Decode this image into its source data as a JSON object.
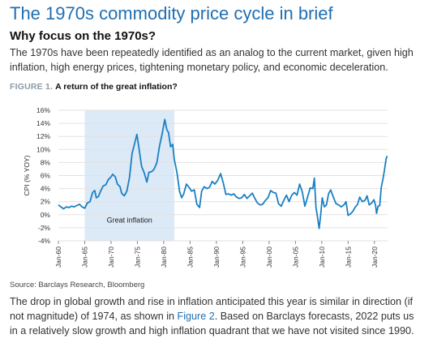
{
  "header": {
    "title": "The 1970s commodity price cycle in brief",
    "subhead": "Why focus on the 1970s?",
    "intro": "The 1970s have been repeatedly identified as an analog to the current market, given high inflation, high energy prices, tightening monetary policy, and economic deceleration."
  },
  "figure": {
    "label": "FIGURE 1.",
    "caption": "A return of the great inflation?"
  },
  "chart_data": {
    "type": "line",
    "ylabel": "CPI (% YOY)",
    "ylim": [
      -4,
      16
    ],
    "yticks": [
      "16%",
      "14%",
      "12%",
      "10%",
      "8%",
      "6%",
      "4%",
      "2%",
      "0%",
      "-2%",
      "-4%"
    ],
    "xlim": [
      1960,
      2022.5
    ],
    "xticks": [
      "Jan-60",
      "Jan-65",
      "Jan-70",
      "Jan-75",
      "Jan-80",
      "Jan-85",
      "Jan-90",
      "Jan-95",
      "Jan-00",
      "Jan-05",
      "Jan-10",
      "Jan-15",
      "Jan-20"
    ],
    "grid": "horizontal",
    "shaded_region": {
      "x": [
        1965,
        1982
      ],
      "label": "Great inflation"
    },
    "series": [
      {
        "color": "#1a80c4",
        "points": [
          [
            1960.0,
            1.5
          ],
          [
            1960.5,
            1.2
          ],
          [
            1961.0,
            0.9
          ],
          [
            1961.5,
            1.2
          ],
          [
            1962.0,
            1.1
          ],
          [
            1962.5,
            1.3
          ],
          [
            1963.0,
            1.2
          ],
          [
            1963.5,
            1.4
          ],
          [
            1964.0,
            1.6
          ],
          [
            1964.5,
            1.2
          ],
          [
            1965.0,
            1.0
          ],
          [
            1965.5,
            1.8
          ],
          [
            1966.0,
            2.0
          ],
          [
            1966.5,
            3.4
          ],
          [
            1966.9,
            3.7
          ],
          [
            1967.2,
            2.6
          ],
          [
            1967.6,
            2.8
          ],
          [
            1968.0,
            3.6
          ],
          [
            1968.5,
            4.4
          ],
          [
            1969.0,
            4.6
          ],
          [
            1969.5,
            5.4
          ],
          [
            1970.0,
            5.8
          ],
          [
            1970.3,
            6.2
          ],
          [
            1970.8,
            5.8
          ],
          [
            1971.2,
            4.7
          ],
          [
            1971.7,
            4.3
          ],
          [
            1972.0,
            3.3
          ],
          [
            1972.5,
            2.9
          ],
          [
            1973.0,
            3.6
          ],
          [
            1973.5,
            5.7
          ],
          [
            1974.0,
            9.4
          ],
          [
            1974.5,
            11.0
          ],
          [
            1974.9,
            12.3
          ],
          [
            1975.3,
            10.2
          ],
          [
            1975.8,
            7.4
          ],
          [
            1976.3,
            6.4
          ],
          [
            1976.8,
            5.0
          ],
          [
            1977.2,
            6.5
          ],
          [
            1977.7,
            6.6
          ],
          [
            1978.2,
            7.0
          ],
          [
            1978.7,
            8.0
          ],
          [
            1979.2,
            10.5
          ],
          [
            1979.7,
            12.4
          ],
          [
            1980.2,
            14.6
          ],
          [
            1980.6,
            13.0
          ],
          [
            1980.9,
            12.6
          ],
          [
            1981.3,
            10.4
          ],
          [
            1981.7,
            10.8
          ],
          [
            1982.0,
            8.5
          ],
          [
            1982.5,
            6.5
          ],
          [
            1983.0,
            3.6
          ],
          [
            1983.4,
            2.6
          ],
          [
            1983.8,
            3.2
          ],
          [
            1984.3,
            4.7
          ],
          [
            1984.8,
            4.2
          ],
          [
            1985.3,
            3.6
          ],
          [
            1985.8,
            3.8
          ],
          [
            1986.3,
            1.6
          ],
          [
            1986.8,
            1.1
          ],
          [
            1987.2,
            3.6
          ],
          [
            1987.7,
            4.3
          ],
          [
            1988.2,
            4.0
          ],
          [
            1988.7,
            4.2
          ],
          [
            1989.2,
            5.1
          ],
          [
            1989.7,
            4.7
          ],
          [
            1990.2,
            5.2
          ],
          [
            1990.8,
            6.3
          ],
          [
            1991.3,
            4.9
          ],
          [
            1991.8,
            3.1
          ],
          [
            1992.3,
            3.2
          ],
          [
            1992.8,
            3.0
          ],
          [
            1993.3,
            3.2
          ],
          [
            1993.8,
            2.7
          ],
          [
            1994.3,
            2.5
          ],
          [
            1994.8,
            2.6
          ],
          [
            1995.3,
            3.1
          ],
          [
            1995.8,
            2.5
          ],
          [
            1996.3,
            2.9
          ],
          [
            1996.8,
            3.3
          ],
          [
            1997.3,
            2.5
          ],
          [
            1997.8,
            1.8
          ],
          [
            1998.3,
            1.5
          ],
          [
            1998.8,
            1.6
          ],
          [
            1999.3,
            2.2
          ],
          [
            1999.8,
            2.6
          ],
          [
            2000.3,
            3.7
          ],
          [
            2000.8,
            3.4
          ],
          [
            2001.3,
            3.3
          ],
          [
            2001.8,
            1.7
          ],
          [
            2002.3,
            1.3
          ],
          [
            2002.8,
            2.2
          ],
          [
            2003.3,
            3.0
          ],
          [
            2003.8,
            2.0
          ],
          [
            2004.3,
            3.0
          ],
          [
            2004.8,
            3.4
          ],
          [
            2005.3,
            3.0
          ],
          [
            2005.8,
            4.7
          ],
          [
            2006.3,
            3.5
          ],
          [
            2006.8,
            1.3
          ],
          [
            2007.3,
            2.7
          ],
          [
            2007.8,
            4.1
          ],
          [
            2008.3,
            4.0
          ],
          [
            2008.6,
            5.6
          ],
          [
            2008.9,
            1.1
          ],
          [
            2009.2,
            -0.4
          ],
          [
            2009.5,
            -2.1
          ],
          [
            2009.8,
            0.0
          ],
          [
            2010.1,
            2.6
          ],
          [
            2010.5,
            1.2
          ],
          [
            2010.9,
            1.5
          ],
          [
            2011.3,
            3.2
          ],
          [
            2011.7,
            3.8
          ],
          [
            2012.2,
            2.7
          ],
          [
            2012.7,
            1.7
          ],
          [
            2013.2,
            1.5
          ],
          [
            2013.7,
            1.2
          ],
          [
            2014.2,
            1.5
          ],
          [
            2014.6,
            2.0
          ],
          [
            2015.0,
            -0.1
          ],
          [
            2015.4,
            0.1
          ],
          [
            2015.9,
            0.5
          ],
          [
            2016.3,
            1.1
          ],
          [
            2016.8,
            1.6
          ],
          [
            2017.2,
            2.7
          ],
          [
            2017.7,
            2.0
          ],
          [
            2018.2,
            2.2
          ],
          [
            2018.6,
            2.9
          ],
          [
            2019.0,
            1.5
          ],
          [
            2019.5,
            1.8
          ],
          [
            2019.9,
            2.3
          ],
          [
            2020.2,
            1.5
          ],
          [
            2020.4,
            0.2
          ],
          [
            2020.7,
            1.3
          ],
          [
            2021.0,
            1.4
          ],
          [
            2021.3,
            4.2
          ],
          [
            2021.6,
            5.4
          ],
          [
            2021.9,
            6.8
          ],
          [
            2022.2,
            8.5
          ],
          [
            2022.4,
            9.0
          ]
        ]
      }
    ]
  },
  "footer": {
    "source": "Source: Barclays Research, Bloomberg",
    "outro_before": "The drop in global growth and rise in inflation anticipated this year is similar in direction (if not magnitude) of 1974, as shown in ",
    "outro_link": "Figure 2",
    "outro_after": ". Based on Barclays forecasts, 2022 puts us in a relatively slow growth and high inflation quadrant that we have not visited since 1990."
  },
  "colors": {
    "title": "#1f6fb2",
    "line": "#1a80c4",
    "shade": "#dce9f7",
    "grid": "#e2e2e2",
    "link": "#1f6fb2"
  }
}
